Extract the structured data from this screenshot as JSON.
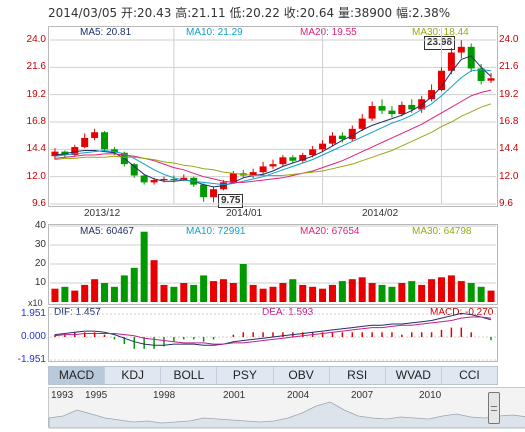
{
  "header": {
    "date": "2014/03/05",
    "open_label": "开:",
    "open": "20.43",
    "high_label": "高:",
    "high": "21.11",
    "low_label": "低:",
    "low": "20.22",
    "close_label": "收:",
    "close": "20.64",
    "volume_label": "量:",
    "volume": "38900",
    "change_label": "幅:",
    "change": "2.38%"
  },
  "price_panel": {
    "ma5": "MA5: 20.81",
    "ma10": "MA10: 21.29",
    "ma20": "MA20: 19.55",
    "ma30": "MA30: 18.44",
    "y_ticks": [
      "24.0",
      "21.6",
      "19.2",
      "16.8",
      "14.4",
      "12.0",
      "9.6"
    ],
    "x_ticks": [
      "2013/12",
      "2014/01",
      "2014/02"
    ],
    "high_callout": "23.98",
    "low_callout": "9.75"
  },
  "volume_panel": {
    "ma5": "MA5: 60467",
    "ma10": "MA10: 72991",
    "ma20": "MA20: 67654",
    "ma30": "MA30: 64798",
    "y_ticks": [
      "40",
      "30",
      "20",
      "10"
    ],
    "unit": "x10"
  },
  "macd_panel": {
    "dif": "DIF: 1.457",
    "dea": "DEA: 1.593",
    "macd": "MACD: -0.270",
    "y_ticks": [
      "1.951",
      "0.000",
      "-1.951"
    ]
  },
  "tabs": [
    "MACD",
    "KDJ",
    "BOLL",
    "PSY",
    "OBV",
    "RSI",
    "WVAD",
    "CCI"
  ],
  "active_tab": "MACD",
  "timeline_years": [
    "1993",
    "1995",
    "1998",
    "2001",
    "2004",
    "2007",
    "2010"
  ],
  "colors": {
    "up": "#e60000",
    "down": "#009a00",
    "ma5": "#1f2f6b",
    "ma10": "#11a0c8",
    "ma20": "#e0207a",
    "ma30": "#9aa814",
    "grid": "#cfcfcf"
  },
  "chart_data": [
    {
      "type": "candlestick",
      "title": "",
      "ylim": [
        9.6,
        24.0
      ],
      "series": [
        {
          "name": "MA5",
          "values": [
            13.9,
            14.0,
            14.2,
            14.3,
            14.3,
            14.2,
            14.1,
            13.6,
            12.9,
            12.2,
            11.8,
            11.6,
            11.6,
            11.7,
            11.6,
            11.3,
            11.1,
            11.2,
            11.5,
            11.9,
            12.1,
            12.2,
            12.5,
            12.9,
            13.2,
            13.5,
            13.8,
            14.2,
            14.7,
            15.2,
            15.6,
            16.1,
            16.5,
            16.8,
            17.1,
            17.4,
            17.8,
            18.3,
            19.0,
            19.9,
            21.2,
            22.3,
            22.6,
            21.6,
            20.8
          ]
        },
        {
          "name": "MA10",
          "values": [
            13.8,
            13.9,
            14.0,
            14.1,
            14.2,
            14.3,
            14.2,
            14.0,
            13.6,
            13.1,
            12.6,
            12.2,
            11.9,
            11.7,
            11.6,
            11.5,
            11.4,
            11.3,
            11.4,
            11.6,
            11.8,
            12.0,
            12.3,
            12.6,
            12.9,
            13.2,
            13.5,
            13.9,
            14.3,
            14.7,
            15.1,
            15.5,
            15.9,
            16.3,
            16.7,
            17.0,
            17.4,
            17.9,
            18.4,
            19.1,
            19.9,
            20.7,
            21.3,
            21.4,
            21.3
          ]
        },
        {
          "name": "MA20",
          "values": [
            13.6,
            13.7,
            13.8,
            13.9,
            13.9,
            14.0,
            14.0,
            13.9,
            13.8,
            13.6,
            13.4,
            13.1,
            12.8,
            12.6,
            12.3,
            12.0,
            11.8,
            11.6,
            11.5,
            11.5,
            11.6,
            11.7,
            11.8,
            11.9,
            12.1,
            12.3,
            12.5,
            12.8,
            13.1,
            13.4,
            13.8,
            14.2,
            14.6,
            15.0,
            15.4,
            15.8,
            16.2,
            16.6,
            17.1,
            17.6,
            18.1,
            18.6,
            19.1,
            19.4,
            19.6
          ]
        },
        {
          "name": "MA30",
          "values": [
            13.5,
            13.6,
            13.6,
            13.7,
            13.7,
            13.7,
            13.8,
            13.7,
            13.7,
            13.6,
            13.5,
            13.3,
            13.2,
            13.0,
            12.9,
            12.7,
            12.6,
            12.4,
            12.3,
            12.2,
            12.1,
            12.1,
            12.1,
            12.1,
            12.2,
            12.3,
            12.4,
            12.5,
            12.7,
            12.9,
            13.1,
            13.4,
            13.7,
            14.0,
            14.3,
            14.7,
            15.1,
            15.5,
            15.9,
            16.4,
            16.8,
            17.3,
            17.7,
            18.1,
            18.4
          ]
        }
      ],
      "candles": [
        [
          13.8,
          14.2,
          14.5,
          13.5
        ],
        [
          14.2,
          13.9,
          14.3,
          13.6
        ],
        [
          13.9,
          14.6,
          14.8,
          13.8
        ],
        [
          14.6,
          15.4,
          15.8,
          14.5
        ],
        [
          15.4,
          15.9,
          16.2,
          15.2
        ],
        [
          15.9,
          14.4,
          16.0,
          14.2
        ],
        [
          14.4,
          14.1,
          14.6,
          13.9
        ],
        [
          14.1,
          13.1,
          14.2,
          12.9
        ],
        [
          13.1,
          12.1,
          13.2,
          11.9
        ],
        [
          12.1,
          11.5,
          12.2,
          11.3
        ],
        [
          11.5,
          11.7,
          11.9,
          11.3
        ],
        [
          11.7,
          11.8,
          12.0,
          11.5
        ],
        [
          11.8,
          11.7,
          12.1,
          11.5
        ],
        [
          11.7,
          11.9,
          12.2,
          11.6
        ],
        [
          11.9,
          11.3,
          12.0,
          11.1
        ],
        [
          11.3,
          10.2,
          11.4,
          9.8
        ],
        [
          10.2,
          10.9,
          11.1,
          9.75
        ],
        [
          10.9,
          11.5,
          11.7,
          10.8
        ],
        [
          11.5,
          12.3,
          12.5,
          11.4
        ],
        [
          12.3,
          12.1,
          12.6,
          11.9
        ],
        [
          12.1,
          12.4,
          12.7,
          11.9
        ],
        [
          12.4,
          12.9,
          13.3,
          12.2
        ],
        [
          12.9,
          13.1,
          13.5,
          12.7
        ],
        [
          13.1,
          13.7,
          13.9,
          12.9
        ],
        [
          13.7,
          13.4,
          13.9,
          13.2
        ],
        [
          13.4,
          13.9,
          14.1,
          13.2
        ],
        [
          13.9,
          14.4,
          14.7,
          13.7
        ],
        [
          14.4,
          14.9,
          15.2,
          14.2
        ],
        [
          14.9,
          15.6,
          15.9,
          14.7
        ],
        [
          15.6,
          15.3,
          15.9,
          15.0
        ],
        [
          15.3,
          16.2,
          16.5,
          15.1
        ],
        [
          16.2,
          17.1,
          17.5,
          16.0
        ],
        [
          17.1,
          18.2,
          18.6,
          16.9
        ],
        [
          18.2,
          17.8,
          18.8,
          17.5
        ],
        [
          17.8,
          17.5,
          18.2,
          17.2
        ],
        [
          17.5,
          18.3,
          18.6,
          17.3
        ],
        [
          18.3,
          17.9,
          18.8,
          17.6
        ],
        [
          17.9,
          18.8,
          19.1,
          17.6
        ],
        [
          18.8,
          19.6,
          20.1,
          18.6
        ],
        [
          19.6,
          21.3,
          21.6,
          19.5
        ],
        [
          21.3,
          22.9,
          23.3,
          21.0
        ],
        [
          22.9,
          23.4,
          23.98,
          22.4
        ],
        [
          23.4,
          21.5,
          23.7,
          21.2
        ],
        [
          21.5,
          20.4,
          21.9,
          20.1
        ],
        [
          20.43,
          20.64,
          21.11,
          20.22
        ]
      ]
    },
    {
      "type": "bar",
      "title": "",
      "ylim": [
        0,
        40
      ],
      "values": [
        7,
        8,
        6,
        9,
        12,
        10,
        8,
        14,
        18,
        37,
        22,
        9,
        8,
        10,
        9,
        14,
        11,
        12,
        10,
        20,
        9,
        7,
        8,
        10,
        12,
        9,
        8,
        7,
        9,
        11,
        12,
        13,
        10,
        9,
        8,
        10,
        11,
        9,
        12,
        13,
        14,
        11,
        10,
        8,
        6
      ]
    },
    {
      "type": "line",
      "title": "",
      "ylim": [
        -1.951,
        1.951
      ],
      "series": [
        {
          "name": "DIF",
          "values": [
            0.2,
            0.3,
            0.4,
            0.5,
            0.5,
            0.4,
            0.2,
            -0.1,
            -0.4,
            -0.6,
            -0.7,
            -0.7,
            -0.6,
            -0.6,
            -0.6,
            -0.7,
            -0.7,
            -0.6,
            -0.4,
            -0.3,
            -0.2,
            -0.1,
            0.0,
            0.1,
            0.2,
            0.3,
            0.4,
            0.5,
            0.6,
            0.7,
            0.8,
            0.9,
            1.0,
            1.0,
            1.1,
            1.1,
            1.2,
            1.3,
            1.4,
            1.6,
            1.8,
            2.0,
            1.9,
            1.7,
            1.457
          ]
        },
        {
          "name": "DEA",
          "values": [
            0.1,
            0.2,
            0.2,
            0.3,
            0.3,
            0.3,
            0.3,
            0.2,
            0.1,
            -0.1,
            -0.2,
            -0.3,
            -0.4,
            -0.5,
            -0.5,
            -0.5,
            -0.6,
            -0.6,
            -0.5,
            -0.5,
            -0.4,
            -0.3,
            -0.2,
            -0.1,
            0.0,
            0.1,
            0.2,
            0.3,
            0.4,
            0.5,
            0.6,
            0.7,
            0.8,
            0.8,
            0.9,
            1.0,
            1.0,
            1.1,
            1.2,
            1.3,
            1.4,
            1.6,
            1.7,
            1.7,
            1.593
          ]
        }
      ]
    }
  ]
}
